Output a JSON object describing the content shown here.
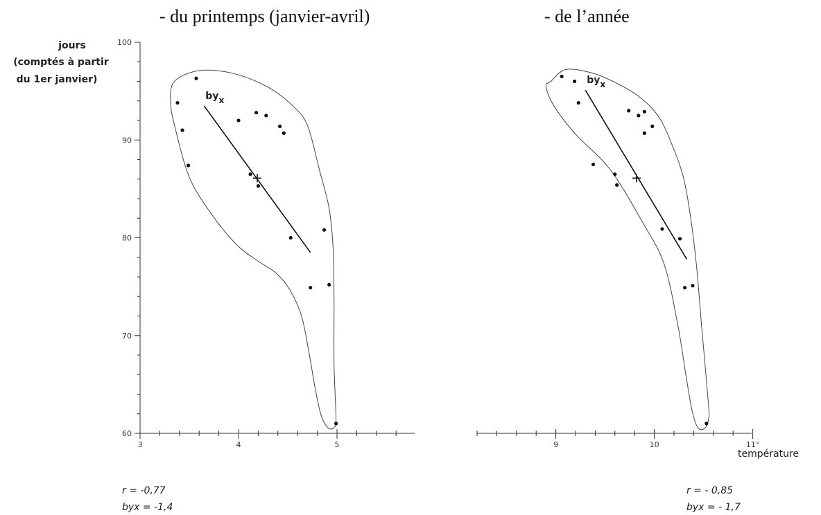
{
  "chart_data": [
    {
      "type": "scatter",
      "title": "- du printemps (janvier-avril)",
      "ylabel": [
        "jours",
        "(comptés à partir",
        "du 1er janvier)"
      ],
      "xlabel": "",
      "xlim": [
        3,
        5.8
      ],
      "ylim": [
        60,
        100
      ],
      "x_ticks": [
        "3",
        "4",
        "5"
      ],
      "y_ticks": [
        "60",
        "70",
        "80",
        "90",
        "100"
      ],
      "points": [
        {
          "x": 3.38,
          "y": 93.8
        },
        {
          "x": 3.43,
          "y": 91.0
        },
        {
          "x": 3.49,
          "y": 87.4
        },
        {
          "x": 3.57,
          "y": 96.3
        },
        {
          "x": 4.0,
          "y": 92.0
        },
        {
          "x": 4.12,
          "y": 86.5
        },
        {
          "x": 4.2,
          "y": 85.3
        },
        {
          "x": 4.18,
          "y": 92.8
        },
        {
          "x": 4.28,
          "y": 92.5
        },
        {
          "x": 4.42,
          "y": 91.4
        },
        {
          "x": 4.46,
          "y": 90.7
        },
        {
          "x": 4.53,
          "y": 80.0
        },
        {
          "x": 4.73,
          "y": 74.9
        },
        {
          "x": 4.87,
          "y": 80.8
        },
        {
          "x": 4.92,
          "y": 75.2
        },
        {
          "x": 4.99,
          "y": 61.0
        }
      ],
      "mean": {
        "x": 4.19,
        "y": 86.1
      },
      "regression": {
        "label": "by",
        "label_sub": "x",
        "x1": 3.65,
        "y1": 93.5,
        "x2": 4.73,
        "y2": 78.5
      },
      "envelope": [
        [
          3.35,
          96
        ],
        [
          3.6,
          97.1
        ],
        [
          3.95,
          96.8
        ],
        [
          4.3,
          95.4
        ],
        [
          4.55,
          93.5
        ],
        [
          4.7,
          91.5
        ],
        [
          4.82,
          87
        ],
        [
          4.92,
          83
        ],
        [
          4.96,
          79
        ],
        [
          4.97,
          74
        ],
        [
          4.97,
          67
        ],
        [
          4.99,
          61.6
        ],
        [
          4.97,
          60.6
        ],
        [
          4.91,
          60.55
        ],
        [
          4.84,
          61.8
        ],
        [
          4.78,
          64.5
        ],
        [
          4.72,
          68
        ],
        [
          4.64,
          72
        ],
        [
          4.52,
          74.7
        ],
        [
          4.38,
          76.4
        ],
        [
          4.2,
          77.6
        ],
        [
          3.98,
          79.3
        ],
        [
          3.72,
          82.5
        ],
        [
          3.5,
          86.2
        ],
        [
          3.35,
          91.5
        ],
        [
          3.31,
          94
        ]
      ],
      "stats": {
        "r": "r = -0,77",
        "byx": "byx = -1,4"
      },
      "grid": false
    },
    {
      "type": "scatter",
      "title": "- de l’année",
      "ylabel": "",
      "xlabel": "température",
      "xlim": [
        8.2,
        11
      ],
      "ylim": [
        60,
        100
      ],
      "x_ticks": [
        "9",
        "10",
        "11°"
      ],
      "points": [
        {
          "x": 9.06,
          "y": 96.5
        },
        {
          "x": 9.19,
          "y": 96.0
        },
        {
          "x": 9.23,
          "y": 93.8
        },
        {
          "x": 9.38,
          "y": 87.5
        },
        {
          "x": 9.6,
          "y": 86.5
        },
        {
          "x": 9.62,
          "y": 85.4
        },
        {
          "x": 9.74,
          "y": 93.0
        },
        {
          "x": 9.84,
          "y": 92.5
        },
        {
          "x": 9.9,
          "y": 92.9
        },
        {
          "x": 9.9,
          "y": 90.7
        },
        {
          "x": 9.98,
          "y": 91.4
        },
        {
          "x": 10.08,
          "y": 80.9
        },
        {
          "x": 10.26,
          "y": 79.9
        },
        {
          "x": 10.31,
          "y": 74.9
        },
        {
          "x": 10.39,
          "y": 75.1
        },
        {
          "x": 10.53,
          "y": 61.0
        }
      ],
      "mean": {
        "x": 9.82,
        "y": 86.1
      },
      "regression": {
        "label": "by",
        "label_sub": "x",
        "x1": 9.3,
        "y1": 95.1,
        "x2": 10.33,
        "y2": 77.8
      },
      "envelope": [
        [
          8.95,
          96
        ],
        [
          9.1,
          97.2
        ],
        [
          9.35,
          96.9
        ],
        [
          9.6,
          95.9
        ],
        [
          9.85,
          94.4
        ],
        [
          10.05,
          92.3
        ],
        [
          10.2,
          89
        ],
        [
          10.3,
          86
        ],
        [
          10.37,
          82
        ],
        [
          10.43,
          77
        ],
        [
          10.48,
          71
        ],
        [
          10.55,
          63
        ],
        [
          10.55,
          61.4
        ],
        [
          10.51,
          60.5
        ],
        [
          10.44,
          60.6
        ],
        [
          10.38,
          62.5
        ],
        [
          10.32,
          66
        ],
        [
          10.24,
          71
        ],
        [
          10.1,
          77.3
        ],
        [
          9.88,
          81.6
        ],
        [
          9.55,
          87
        ],
        [
          9.2,
          90.6
        ],
        [
          8.98,
          93.5
        ],
        [
          8.9,
          95.5
        ]
      ],
      "stats": {
        "r": "r = - 0,85",
        "byx": "byx = - 1,7"
      },
      "grid": false
    }
  ]
}
